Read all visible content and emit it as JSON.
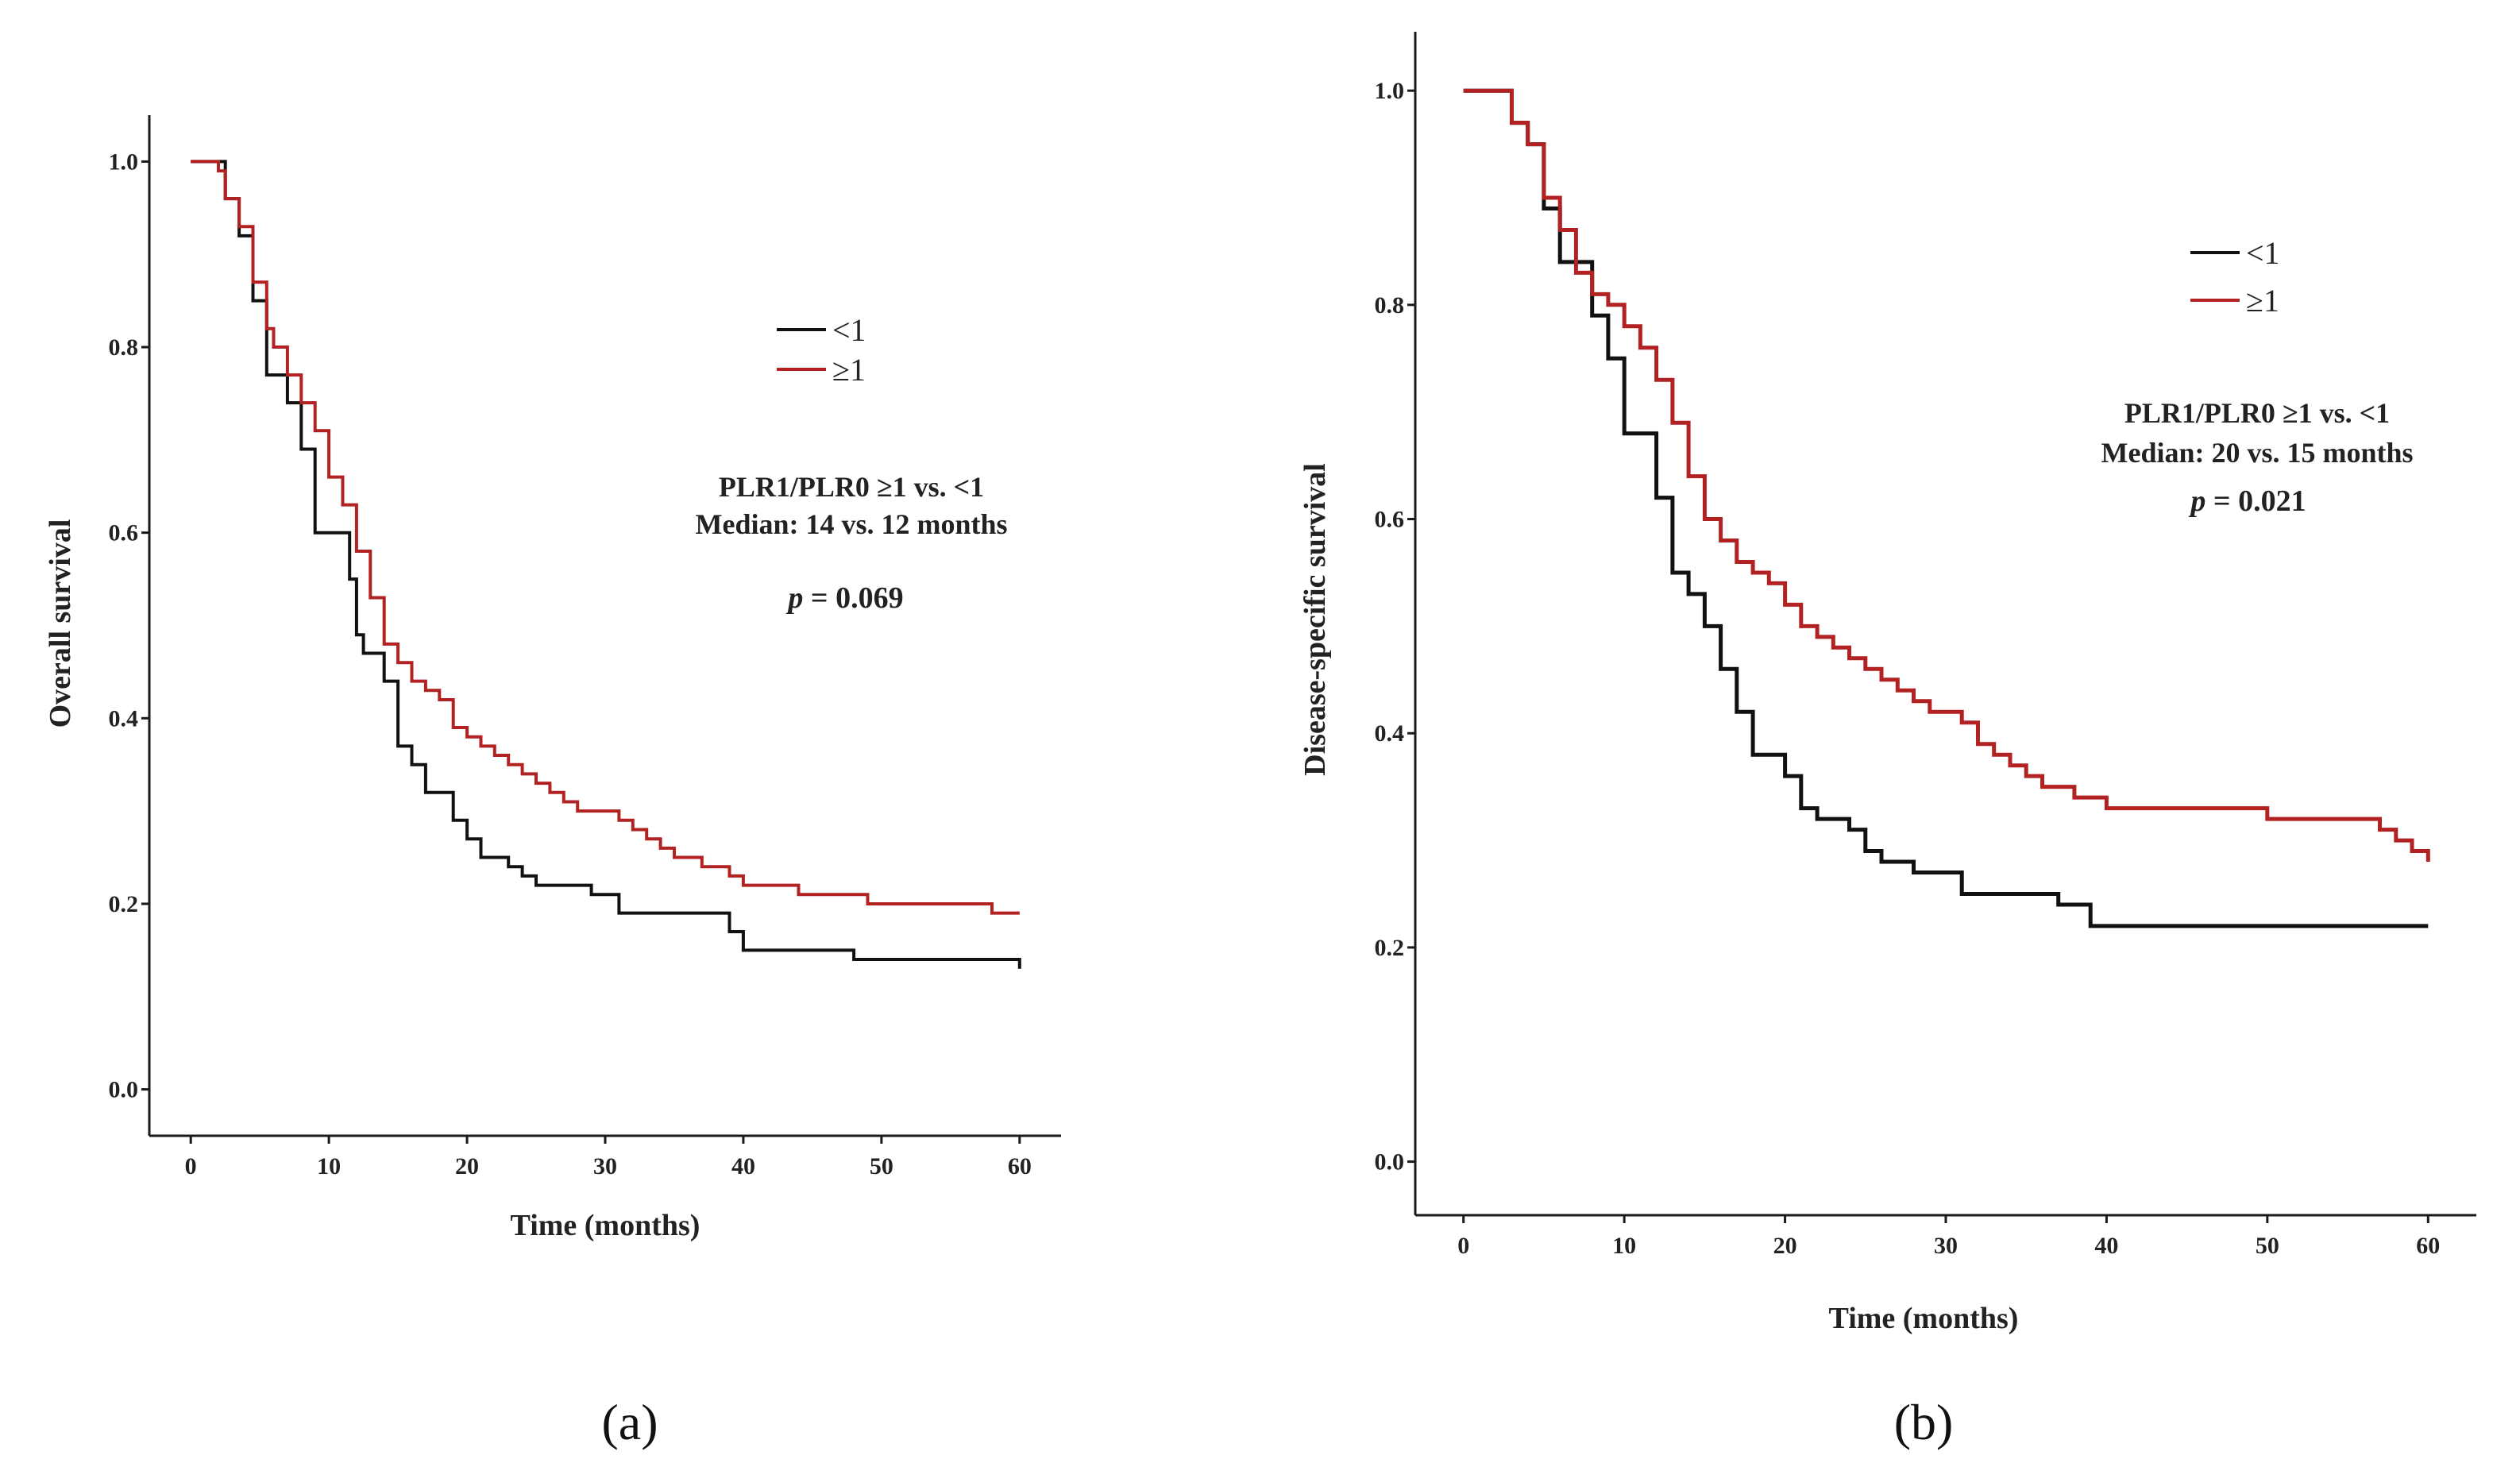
{
  "chart_data": [
    {
      "type": "line",
      "panel_label": "(a)",
      "title": "",
      "xlabel": "Time (months)",
      "ylabel": "Overall survival",
      "xlim": [
        -3,
        63
      ],
      "ylim": [
        -0.05,
        1.05
      ],
      "x_ticks": [
        0,
        10,
        20,
        30,
        40,
        50,
        60
      ],
      "y_ticks": [
        0.0,
        0.2,
        0.4,
        0.6,
        0.8,
        1.0
      ],
      "y_tick_labels": [
        "0.0",
        "0.2",
        "0.4",
        "0.6",
        "0.8",
        "1.0"
      ],
      "legend": {
        "placement": "top-right",
        "entries": [
          "<1",
          "≥1"
        ]
      },
      "annotation": {
        "line1": "PLR1/PLR0 ≥1 vs. <1",
        "line2": "Median: 14 vs. 12 months",
        "p_label": "p",
        "p_value": "= 0.069"
      },
      "series": [
        {
          "name": "<1",
          "color": "#111111",
          "x": [
            0,
            2,
            2.5,
            3,
            3.5,
            4,
            4.5,
            5,
            5.5,
            6,
            7,
            8,
            9,
            11,
            11.5,
            12,
            12.5,
            13,
            14,
            15,
            15.5,
            16,
            16.5,
            17,
            18,
            19,
            20,
            21,
            22,
            23,
            24,
            25,
            26,
            29,
            31,
            37,
            39,
            40,
            48,
            60
          ],
          "y": [
            1.0,
            1.0,
            0.96,
            0.96,
            0.92,
            0.92,
            0.85,
            0.85,
            0.77,
            0.77,
            0.74,
            0.69,
            0.6,
            0.6,
            0.55,
            0.49,
            0.47,
            0.47,
            0.44,
            0.37,
            0.37,
            0.35,
            0.35,
            0.32,
            0.32,
            0.29,
            0.27,
            0.25,
            0.25,
            0.24,
            0.23,
            0.22,
            0.22,
            0.21,
            0.19,
            0.19,
            0.17,
            0.15,
            0.14,
            0.13
          ]
        },
        {
          "name": "≥1",
          "color": "#b22222",
          "x": [
            0,
            1,
            2,
            2.5,
            3,
            3.5,
            4,
            4.5,
            5,
            5.5,
            6,
            7,
            8,
            9,
            10,
            11,
            12,
            13,
            13.5,
            14,
            15,
            16,
            17,
            18,
            19,
            20,
            21,
            22,
            23,
            24,
            25,
            26,
            27,
            28,
            29,
            30,
            31,
            32,
            33,
            34,
            35,
            36,
            37,
            38,
            39,
            40,
            41,
            42,
            44,
            48,
            49,
            57,
            58,
            60
          ],
          "y": [
            1.0,
            1.0,
            0.99,
            0.96,
            0.96,
            0.93,
            0.93,
            0.87,
            0.87,
            0.82,
            0.8,
            0.77,
            0.74,
            0.71,
            0.66,
            0.63,
            0.58,
            0.53,
            0.53,
            0.48,
            0.46,
            0.44,
            0.43,
            0.42,
            0.39,
            0.38,
            0.37,
            0.36,
            0.35,
            0.34,
            0.33,
            0.32,
            0.31,
            0.3,
            0.3,
            0.3,
            0.29,
            0.28,
            0.27,
            0.26,
            0.25,
            0.25,
            0.24,
            0.24,
            0.23,
            0.22,
            0.22,
            0.22,
            0.21,
            0.21,
            0.2,
            0.2,
            0.19,
            0.19
          ]
        }
      ]
    },
    {
      "type": "line",
      "panel_label": "(b)",
      "title": "",
      "xlabel": "Time (months)",
      "ylabel": "Disease-specific survival",
      "xlim": [
        -3,
        63
      ],
      "ylim": [
        -0.05,
        1.055
      ],
      "x_ticks": [
        0,
        10,
        20,
        30,
        40,
        50,
        60
      ],
      "y_ticks": [
        0.0,
        0.2,
        0.4,
        0.6,
        0.8,
        1.0
      ],
      "y_tick_labels": [
        "0.0",
        "0.2",
        "0.4",
        "0.6",
        "0.8",
        "1.0"
      ],
      "legend": {
        "placement": "top-right",
        "entries": [
          "<1",
          "≥1"
        ]
      },
      "annotation": {
        "line1": "PLR1/PLR0 ≥1 vs. <1",
        "line2": "Median: 20 vs. 15 months",
        "p_label": "p",
        "p_value": "= 0.021"
      },
      "series": [
        {
          "name": "<1",
          "color": "#111111",
          "x": [
            0,
            2,
            3,
            4,
            5,
            6,
            7,
            8,
            9,
            10,
            11,
            12,
            13,
            14,
            15,
            16,
            17,
            18,
            19,
            20,
            21,
            22,
            23,
            24,
            25,
            26,
            28,
            31,
            37,
            39,
            60
          ],
          "y": [
            1.0,
            1.0,
            0.97,
            0.95,
            0.89,
            0.84,
            0.84,
            0.79,
            0.75,
            0.68,
            0.68,
            0.62,
            0.55,
            0.53,
            0.5,
            0.46,
            0.42,
            0.38,
            0.38,
            0.36,
            0.33,
            0.32,
            0.32,
            0.31,
            0.29,
            0.28,
            0.27,
            0.25,
            0.24,
            0.22,
            0.22
          ]
        },
        {
          "name": "≥1",
          "color": "#b22222",
          "x": [
            0,
            2,
            3,
            4,
            5,
            6,
            7,
            8,
            9,
            10,
            11,
            12,
            13,
            14,
            15,
            16,
            17,
            18,
            19,
            20,
            21,
            22,
            23,
            24,
            25,
            26,
            27,
            28,
            29,
            30,
            31,
            32,
            33,
            34,
            35,
            36,
            37,
            38,
            39,
            40,
            42,
            49,
            50,
            57,
            58,
            59,
            60
          ],
          "y": [
            1.0,
            1.0,
            0.97,
            0.95,
            0.9,
            0.87,
            0.83,
            0.81,
            0.8,
            0.78,
            0.76,
            0.73,
            0.69,
            0.64,
            0.6,
            0.58,
            0.56,
            0.55,
            0.54,
            0.52,
            0.5,
            0.49,
            0.48,
            0.47,
            0.46,
            0.45,
            0.44,
            0.43,
            0.42,
            0.42,
            0.41,
            0.39,
            0.38,
            0.37,
            0.36,
            0.35,
            0.35,
            0.34,
            0.34,
            0.33,
            0.33,
            0.33,
            0.32,
            0.31,
            0.3,
            0.29,
            0.28
          ]
        }
      ]
    }
  ]
}
